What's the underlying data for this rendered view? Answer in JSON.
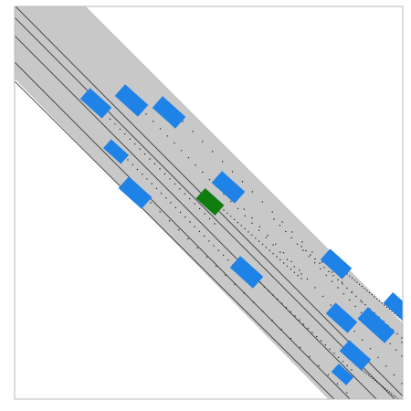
{
  "scene": {
    "kind": "highway-driving-simulation",
    "view": "top-down",
    "lane_count": 5,
    "ego_vehicle": {
      "lane": 2,
      "color": "#0f7d0f",
      "heading": "down-right"
    },
    "other_vehicles": [
      {
        "id": "car-1",
        "lane": 1
      },
      {
        "id": "car-2",
        "lane": 2
      },
      {
        "id": "car-3",
        "lane": 3
      },
      {
        "id": "car-4",
        "lane": 1
      },
      {
        "id": "car-5",
        "lane": 1
      },
      {
        "id": "car-6",
        "lane": 3
      },
      {
        "id": "car-7",
        "lane": 2
      },
      {
        "id": "car-8",
        "lane": 4
      },
      {
        "id": "car-9",
        "lane": 5
      },
      {
        "id": "car-10",
        "lane": 3
      },
      {
        "id": "car-11",
        "lane": 4
      },
      {
        "id": "car-12",
        "lane": 3
      },
      {
        "id": "car-13",
        "lane": 2
      }
    ],
    "colors": {
      "road": "#c8c8c8",
      "lane_line": "#2a2a2a",
      "vehicle": "#1e82e6",
      "ego": "#0f7d0f",
      "trail": "#202020",
      "frame": "#bbbbbb",
      "background": "#ffffff"
    }
  }
}
